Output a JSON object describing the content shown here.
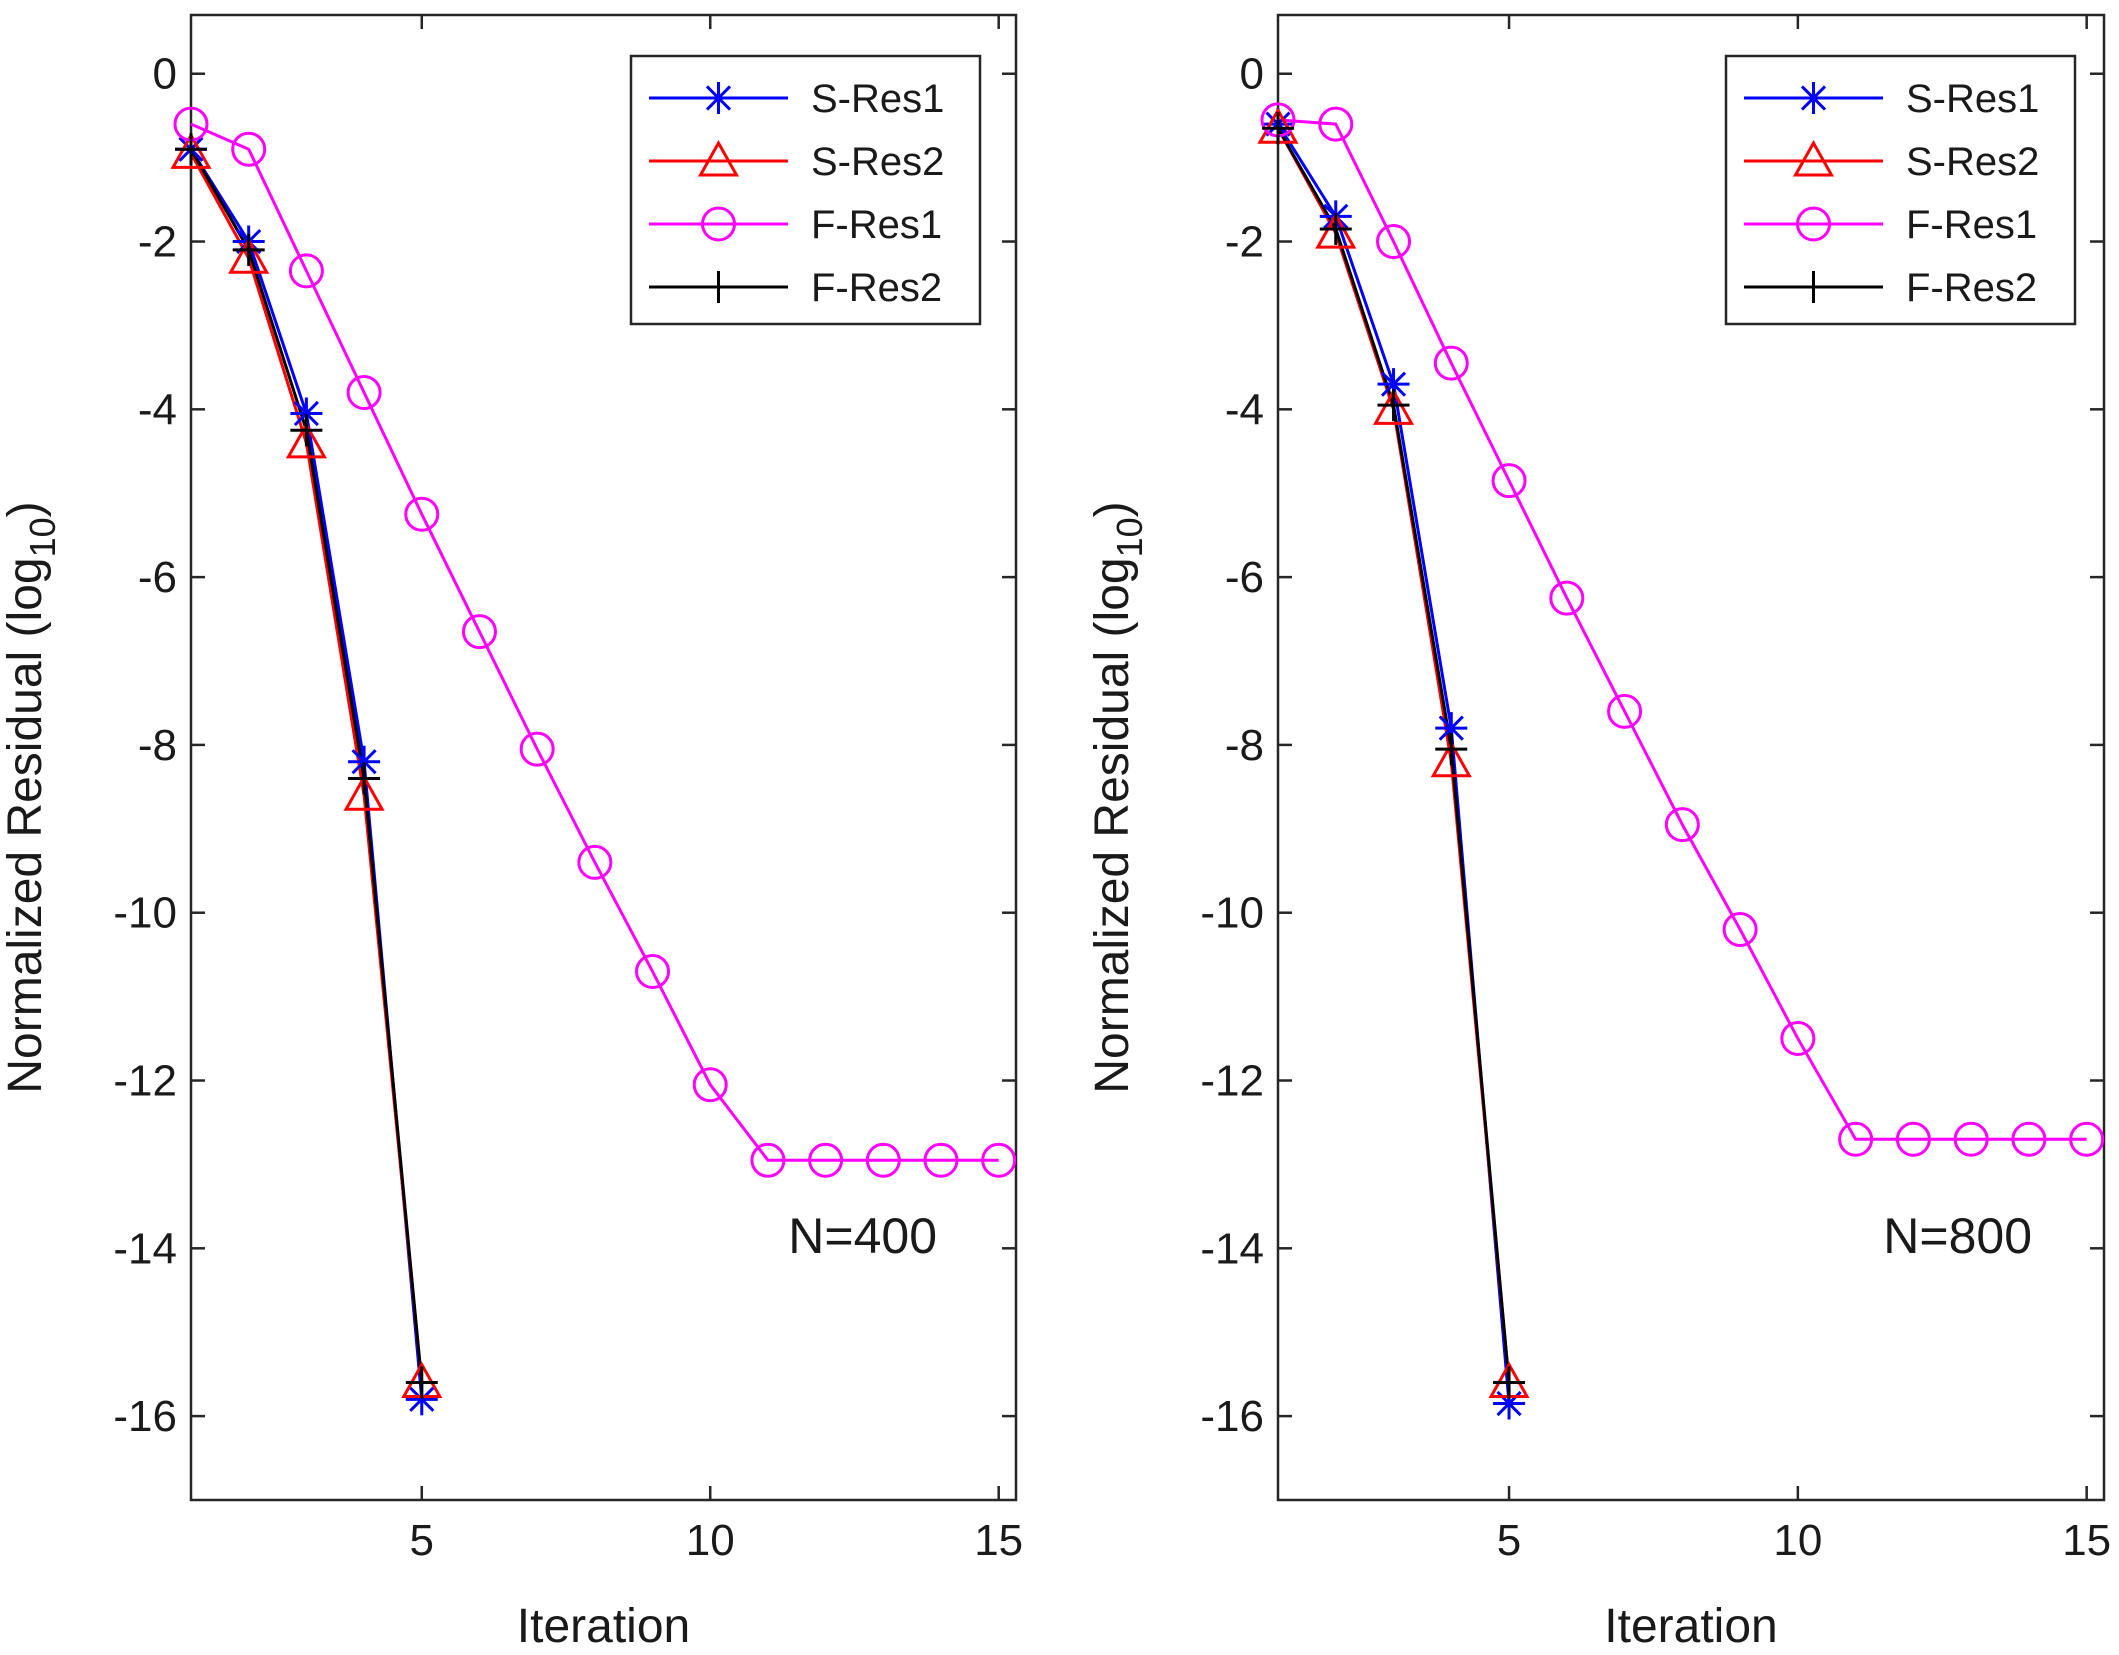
{
  "chart_data": [
    {
      "type": "line",
      "xlabel": "Iteration",
      "ylabel": "Normalized Residual (log",
      "ylabel_sub": "10",
      "ylabel_close": ")",
      "xlim": [
        1,
        15.3
      ],
      "ylim": [
        -17,
        0.7
      ],
      "xticks": [
        5,
        10,
        15
      ],
      "yticks": [
        0,
        -2,
        -4,
        -6,
        -8,
        -10,
        -12,
        -14,
        -16
      ],
      "legend_position": "top-right",
      "annotation": "N=400",
      "series": [
        {
          "name": "S-Res1",
          "color": "#0000ff",
          "marker": "asterisk",
          "x": [
            1,
            2,
            3,
            4,
            5
          ],
          "y": [
            -0.9,
            -2.0,
            -4.05,
            -8.2,
            -15.8
          ]
        },
        {
          "name": "S-Res2",
          "color": "#ff0000",
          "marker": "triangle",
          "x": [
            1,
            2,
            3,
            4,
            5
          ],
          "y": [
            -0.95,
            -2.2,
            -4.4,
            -8.6,
            -15.6
          ]
        },
        {
          "name": "F-Res1",
          "color": "#ff00ff",
          "marker": "circle",
          "x": [
            1,
            2,
            3,
            4,
            5,
            6,
            7,
            8,
            9,
            10,
            11,
            12,
            13,
            14,
            15
          ],
          "y": [
            -0.6,
            -0.9,
            -2.35,
            -3.8,
            -5.25,
            -6.65,
            -8.05,
            -9.4,
            -10.7,
            -12.05,
            -12.95,
            -12.95,
            -12.95,
            -12.95,
            -12.95
          ]
        },
        {
          "name": "F-Res2",
          "color": "#000000",
          "marker": "plus",
          "x": [
            1,
            2,
            3,
            4,
            5
          ],
          "y": [
            -0.9,
            -2.1,
            -4.25,
            -8.4,
            -15.6
          ]
        }
      ]
    },
    {
      "type": "line",
      "xlabel": "Iteration",
      "ylabel": "Normalized Residual (log",
      "ylabel_sub": "10",
      "ylabel_close": ")",
      "xlim": [
        1,
        15.3
      ],
      "ylim": [
        -17,
        0.7
      ],
      "xticks": [
        5,
        10,
        15
      ],
      "yticks": [
        0,
        -2,
        -4,
        -6,
        -8,
        -10,
        -12,
        -14,
        -16
      ],
      "legend_position": "top-right",
      "annotation": "N=800",
      "series": [
        {
          "name": "S-Res1",
          "color": "#0000ff",
          "marker": "asterisk",
          "x": [
            1,
            2,
            3,
            4,
            5
          ],
          "y": [
            -0.6,
            -1.7,
            -3.7,
            -7.8,
            -15.85
          ]
        },
        {
          "name": "S-Res2",
          "color": "#ff0000",
          "marker": "triangle",
          "x": [
            1,
            2,
            3,
            4,
            5
          ],
          "y": [
            -0.65,
            -1.9,
            -4.0,
            -8.2,
            -15.6
          ]
        },
        {
          "name": "F-Res1",
          "color": "#ff00ff",
          "marker": "circle",
          "x": [
            1,
            2,
            3,
            4,
            5,
            6,
            7,
            8,
            9,
            10,
            11,
            12,
            13,
            14,
            15
          ],
          "y": [
            -0.55,
            -0.6,
            -2.0,
            -3.45,
            -4.85,
            -6.25,
            -7.6,
            -8.95,
            -10.2,
            -11.5,
            -12.7,
            -12.7,
            -12.7,
            -12.7,
            -12.7
          ]
        },
        {
          "name": "F-Res2",
          "color": "#000000",
          "marker": "plus",
          "x": [
            1,
            2,
            3,
            4,
            5
          ],
          "y": [
            -0.65,
            -1.85,
            -3.95,
            -8.05,
            -15.6
          ]
        }
      ]
    }
  ]
}
